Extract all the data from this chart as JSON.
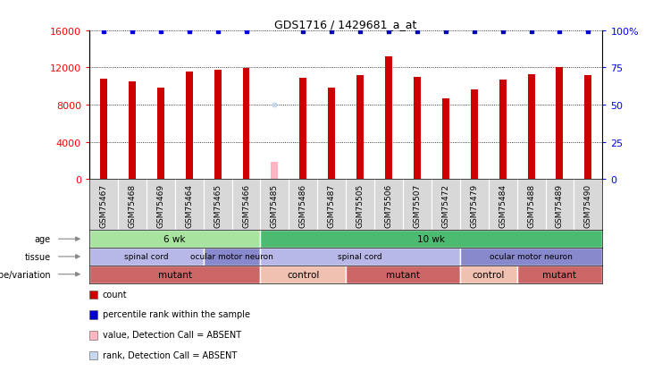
{
  "title": "GDS1716 / 1429681_a_at",
  "samples": [
    "GSM75467",
    "GSM75468",
    "GSM75469",
    "GSM75464",
    "GSM75465",
    "GSM75466",
    "GSM75485",
    "GSM75486",
    "GSM75487",
    "GSM75505",
    "GSM75506",
    "GSM75507",
    "GSM75472",
    "GSM75479",
    "GSM75484",
    "GSM75488",
    "GSM75489",
    "GSM75490"
  ],
  "counts": [
    10800,
    10500,
    9800,
    11600,
    11700,
    11900,
    1800,
    10900,
    9800,
    11200,
    13200,
    11000,
    8700,
    9600,
    10700,
    11300,
    12000,
    11200
  ],
  "absent_idx": [
    6
  ],
  "percentile_ranks": [
    99,
    99,
    99,
    99,
    99,
    99,
    50,
    99,
    99,
    99,
    99,
    99,
    99,
    99,
    99,
    99,
    99,
    99
  ],
  "bar_color": "#cc0000",
  "absent_bar_color": "#ffb6c1",
  "dot_color": "#0000cc",
  "absent_dot_color": "#c8d8f0",
  "ylim_left": [
    0,
    16000
  ],
  "ylim_right": [
    0,
    100
  ],
  "yticks_left": [
    0,
    4000,
    8000,
    12000,
    16000
  ],
  "yticks_right": [
    0,
    25,
    50,
    75,
    100
  ],
  "ytick_labels_left": [
    "0",
    "4000",
    "8000",
    "12000",
    "16000"
  ],
  "ytick_labels_right": [
    "0",
    "25",
    "50",
    "75",
    "100%"
  ],
  "age_row": {
    "groups": [
      {
        "label": "6 wk",
        "start": 0,
        "end": 6,
        "color": "#a8e4a0"
      },
      {
        "label": "10 wk",
        "start": 6,
        "end": 18,
        "color": "#4cbb72"
      }
    ]
  },
  "tissue_row": {
    "groups": [
      {
        "label": "spinal cord",
        "start": 0,
        "end": 4,
        "color": "#b8b8e8"
      },
      {
        "label": "ocular motor neuron",
        "start": 4,
        "end": 6,
        "color": "#8888cc"
      },
      {
        "label": "spinal cord",
        "start": 6,
        "end": 13,
        "color": "#b8b8e8"
      },
      {
        "label": "ocular motor neuron",
        "start": 13,
        "end": 18,
        "color": "#8888cc"
      }
    ]
  },
  "genotype_row": {
    "groups": [
      {
        "label": "mutant",
        "start": 0,
        "end": 6,
        "color": "#cc6666"
      },
      {
        "label": "control",
        "start": 6,
        "end": 9,
        "color": "#f0c0b0"
      },
      {
        "label": "mutant",
        "start": 9,
        "end": 13,
        "color": "#cc6666"
      },
      {
        "label": "control",
        "start": 13,
        "end": 15,
        "color": "#f0c0b0"
      },
      {
        "label": "mutant",
        "start": 15,
        "end": 18,
        "color": "#cc6666"
      }
    ]
  },
  "legend_items": [
    {
      "label": "count",
      "color": "#cc0000"
    },
    {
      "label": "percentile rank within the sample",
      "color": "#0000cc"
    },
    {
      "label": "value, Detection Call = ABSENT",
      "color": "#ffb6c1"
    },
    {
      "label": "rank, Detection Call = ABSENT",
      "color": "#c8d8f0"
    }
  ],
  "row_labels": [
    "age",
    "tissue",
    "genotype/variation"
  ],
  "bar_width": 0.25
}
